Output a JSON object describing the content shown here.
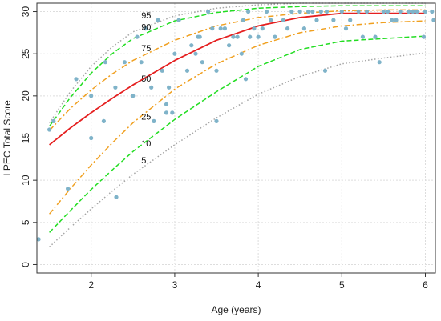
{
  "chart_data": {
    "type": "scatter",
    "xlabel": "Age (years)",
    "ylabel": "LPEC Total Score",
    "xlim": [
      1.35,
      6.12
    ],
    "ylim": [
      -1,
      31
    ],
    "x_ticks": [
      2,
      3,
      4,
      5,
      6
    ],
    "y_ticks": [
      0,
      5,
      10,
      15,
      20,
      25,
      30
    ],
    "x_tick_labels": [
      "2",
      "3",
      "4",
      "5",
      "6"
    ],
    "y_tick_labels": [
      "0",
      "5",
      "10",
      "15",
      "20",
      "25",
      "30"
    ],
    "grid": true,
    "points": [
      [
        1.37,
        3
      ],
      [
        1.5,
        16
      ],
      [
        1.55,
        17
      ],
      [
        1.72,
        9
      ],
      [
        1.82,
        22
      ],
      [
        2.0,
        15
      ],
      [
        2.0,
        20
      ],
      [
        2.15,
        17
      ],
      [
        2.17,
        24
      ],
      [
        2.29,
        21
      ],
      [
        2.3,
        8
      ],
      [
        2.4,
        24
      ],
      [
        2.5,
        20
      ],
      [
        2.55,
        27
      ],
      [
        2.6,
        24
      ],
      [
        2.65,
        28
      ],
      [
        2.72,
        21
      ],
      [
        2.75,
        17
      ],
      [
        2.8,
        29
      ],
      [
        2.85,
        23
      ],
      [
        2.9,
        18
      ],
      [
        2.9,
        19
      ],
      [
        2.93,
        21
      ],
      [
        2.97,
        18
      ],
      [
        3.0,
        25
      ],
      [
        3.05,
        29
      ],
      [
        3.15,
        23
      ],
      [
        3.2,
        26
      ],
      [
        3.25,
        25
      ],
      [
        3.28,
        27
      ],
      [
        3.3,
        27
      ],
      [
        3.33,
        24
      ],
      [
        3.4,
        30
      ],
      [
        3.45,
        28
      ],
      [
        3.5,
        17
      ],
      [
        3.5,
        23
      ],
      [
        3.55,
        28
      ],
      [
        3.6,
        28
      ],
      [
        3.65,
        26
      ],
      [
        3.7,
        27
      ],
      [
        3.75,
        27
      ],
      [
        3.8,
        25
      ],
      [
        3.82,
        29
      ],
      [
        3.85,
        22
      ],
      [
        3.88,
        30
      ],
      [
        3.9,
        27
      ],
      [
        3.95,
        28
      ],
      [
        4.0,
        27
      ],
      [
        4.05,
        28
      ],
      [
        4.1,
        30
      ],
      [
        4.15,
        29
      ],
      [
        4.2,
        27
      ],
      [
        4.3,
        29
      ],
      [
        4.35,
        28
      ],
      [
        4.4,
        30
      ],
      [
        4.5,
        30
      ],
      [
        4.55,
        28
      ],
      [
        4.6,
        30
      ],
      [
        4.65,
        30
      ],
      [
        4.7,
        29
      ],
      [
        4.75,
        30
      ],
      [
        4.8,
        23
      ],
      [
        4.82,
        30
      ],
      [
        4.9,
        29
      ],
      [
        5.0,
        30
      ],
      [
        5.05,
        28
      ],
      [
        5.1,
        29
      ],
      [
        5.2,
        30
      ],
      [
        5.25,
        27
      ],
      [
        5.3,
        30
      ],
      [
        5.4,
        27
      ],
      [
        5.45,
        24
      ],
      [
        5.5,
        30
      ],
      [
        5.55,
        30
      ],
      [
        5.6,
        29
      ],
      [
        5.65,
        29
      ],
      [
        5.7,
        30
      ],
      [
        5.8,
        30
      ],
      [
        5.85,
        30
      ],
      [
        5.9,
        30
      ],
      [
        5.98,
        27
      ],
      [
        6.0,
        30
      ],
      [
        6.08,
        30
      ],
      [
        6.1,
        29
      ]
    ],
    "series": [
      {
        "name": "95",
        "style": "dotted",
        "color": "#a6a6a6",
        "x": [
          1.5,
          1.75,
          2.0,
          2.25,
          2.5,
          3.0,
          3.5,
          4.0,
          4.5,
          5.0,
          5.5,
          6.0
        ],
        "y": [
          16.8,
          20.5,
          23.5,
          25.8,
          27.6,
          29.5,
          30.4,
          30.8,
          31.0,
          31.0,
          31.0,
          31.0
        ]
      },
      {
        "name": "90",
        "style": "dashed",
        "color": "#22dd22",
        "x": [
          1.5,
          1.75,
          2.0,
          2.25,
          2.5,
          3.0,
          3.5,
          4.0,
          4.5,
          5.0,
          5.5,
          6.0
        ],
        "y": [
          16.4,
          19.8,
          22.7,
          25.0,
          26.8,
          28.9,
          29.9,
          30.4,
          30.6,
          30.7,
          30.7,
          30.7
        ]
      },
      {
        "name": "75",
        "style": "dashdot",
        "color": "#f0a020",
        "x": [
          1.5,
          1.75,
          2.0,
          2.25,
          2.5,
          3.0,
          3.5,
          4.0,
          4.5,
          5.0,
          5.5,
          6.0
        ],
        "y": [
          15.9,
          18.5,
          20.7,
          22.6,
          24.2,
          26.6,
          28.3,
          29.3,
          29.8,
          30.1,
          30.2,
          30.2
        ]
      },
      {
        "name": "50",
        "style": "solid",
        "color": "#e52020",
        "x": [
          1.5,
          1.75,
          2.0,
          2.25,
          2.5,
          3.0,
          3.5,
          4.0,
          4.5,
          5.0,
          5.5,
          6.0
        ],
        "y": [
          14.2,
          16.2,
          18.0,
          19.7,
          21.3,
          24.2,
          26.6,
          28.3,
          29.3,
          29.8,
          29.8,
          29.8
        ]
      },
      {
        "name": "25",
        "style": "dashdot",
        "color": "#f0a020",
        "x": [
          1.5,
          1.75,
          2.0,
          2.25,
          2.5,
          3.0,
          3.5,
          4.0,
          4.5,
          5.0,
          5.5,
          6.0
        ],
        "y": [
          6.0,
          9.0,
          11.8,
          14.4,
          16.8,
          20.8,
          23.8,
          26.0,
          27.5,
          28.3,
          28.7,
          28.9
        ]
      },
      {
        "name": "10",
        "style": "dashed",
        "color": "#22dd22",
        "x": [
          1.5,
          1.75,
          2.0,
          2.25,
          2.5,
          3.0,
          3.5,
          4.0,
          4.5,
          5.0,
          5.5,
          6.0
        ],
        "y": [
          3.8,
          6.4,
          8.9,
          11.2,
          13.4,
          17.2,
          20.5,
          23.5,
          25.5,
          26.5,
          26.8,
          27.1
        ]
      },
      {
        "name": "5",
        "style": "dotted",
        "color": "#a6a6a6",
        "x": [
          1.5,
          1.75,
          2.0,
          2.25,
          2.5,
          3.0,
          3.5,
          4.0,
          4.5,
          5.0,
          5.5,
          6.0
        ],
        "y": [
          2.1,
          4.4,
          6.6,
          8.7,
          10.7,
          14.2,
          17.4,
          20.2,
          22.3,
          23.8,
          24.5,
          25.1
        ]
      }
    ],
    "centile_label_positions": [
      {
        "label": "95",
        "x": 2.6,
        "y": 29.2
      },
      {
        "label": "90",
        "x": 2.6,
        "y": 27.8
      },
      {
        "label": "75",
        "x": 2.6,
        "y": 25.3
      },
      {
        "label": "50",
        "x": 2.6,
        "y": 21.7
      },
      {
        "label": "25",
        "x": 2.6,
        "y": 17.2
      },
      {
        "label": "10",
        "x": 2.6,
        "y": 14.0
      },
      {
        "label": "5",
        "x": 2.6,
        "y": 12.0
      }
    ],
    "colors": {
      "points": "#7fb3c9",
      "grid": "#dddddd",
      "frame": "#333333"
    }
  }
}
